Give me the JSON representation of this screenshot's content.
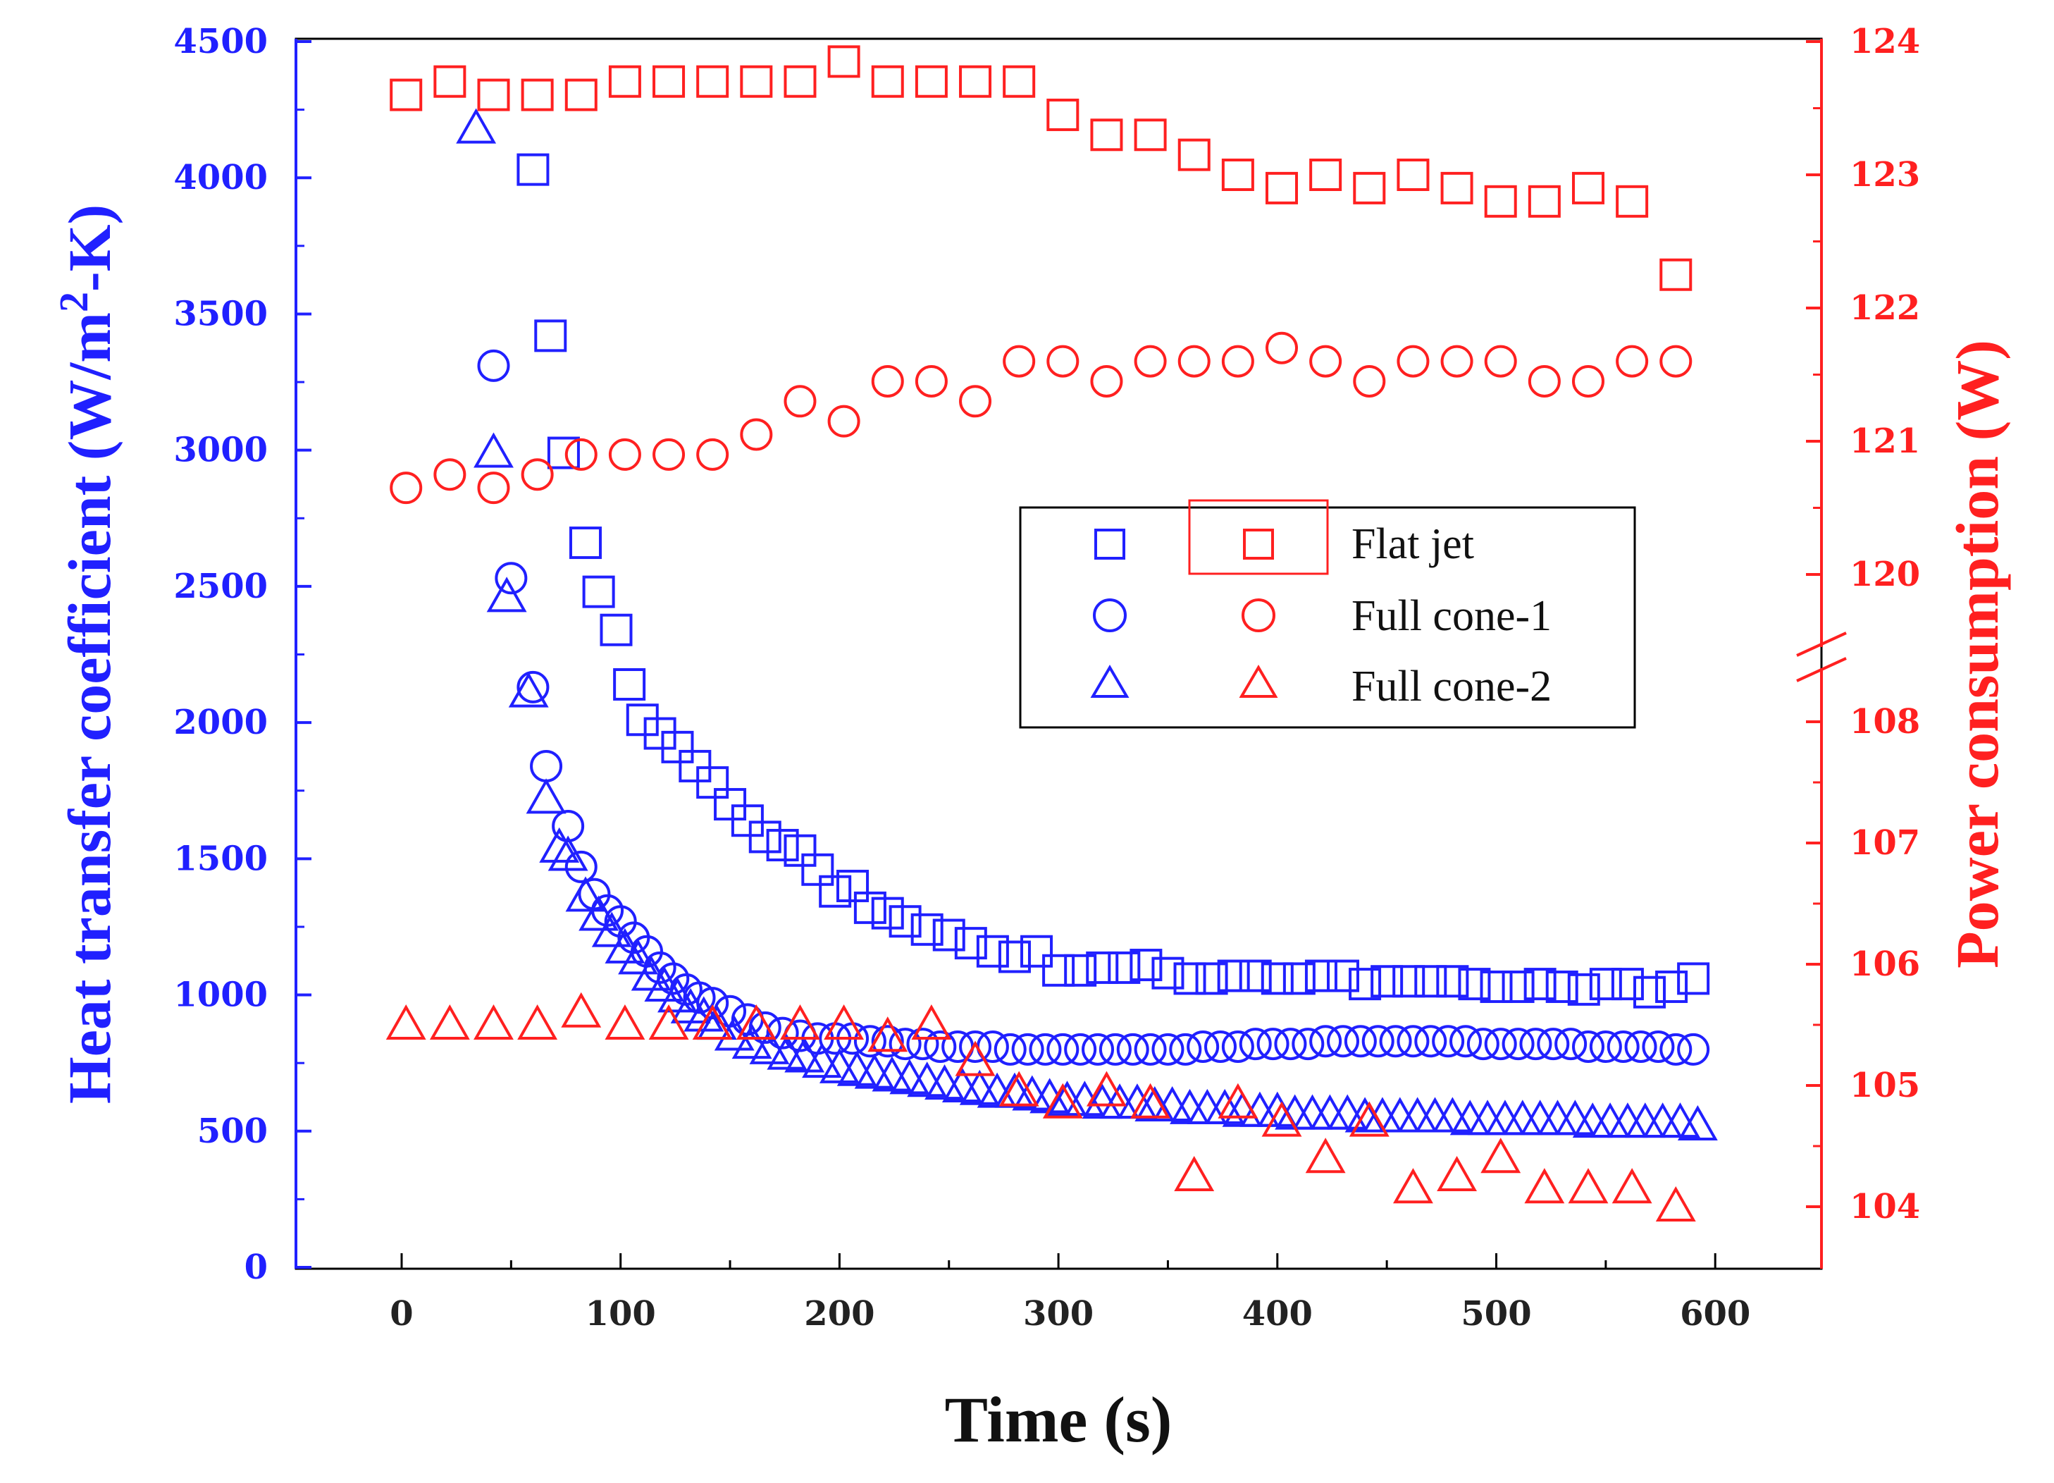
{
  "chart_data": {
    "type": "scatter",
    "title": "",
    "xlabel": "Time (s)",
    "ylabel_left": {
      "prefix": "Heat transfer coefficient (W/m",
      "sup": "2",
      "suffix": "-K)"
    },
    "ylabel_right": "Power consumption (W)",
    "xlim": [
      -50,
      650
    ],
    "x_ticks": [
      0,
      100,
      200,
      300,
      400,
      500,
      600
    ],
    "ylim_left": [
      0,
      4500
    ],
    "y_ticks_left": [
      0,
      500,
      1000,
      1500,
      2000,
      2500,
      3000,
      3500,
      4000,
      4500
    ],
    "right_axis": {
      "note": "broken axis between 108 W and 120 W",
      "upper_range": [
        120,
        124
      ],
      "lower_range": [
        104,
        108
      ],
      "ticks": [
        104,
        105,
        106,
        107,
        108,
        120,
        121,
        122,
        123,
        124
      ]
    },
    "legend": {
      "position": "center-right",
      "entries": [
        {
          "label": "Flat jet",
          "marker": "square"
        },
        {
          "label": "Full cone-1",
          "marker": "circle"
        },
        {
          "label": "Full cone-2",
          "marker": "triangle"
        }
      ]
    },
    "colors": {
      "htc": "#2020ff",
      "power": "#ff2020"
    },
    "series": [
      {
        "name": "Flat jet",
        "axis": "left",
        "color": "#2020ff",
        "marker": "square",
        "x": [
          60,
          68,
          74,
          84,
          90,
          98,
          104,
          110,
          118,
          126,
          134,
          142,
          150,
          158,
          166,
          174,
          182,
          190,
          198,
          206,
          214,
          222,
          230,
          240,
          250,
          260,
          270,
          280,
          290,
          300,
          310,
          320,
          330,
          340,
          350,
          360,
          370,
          380,
          390,
          400,
          410,
          420,
          430,
          440,
          450,
          460,
          470,
          480,
          490,
          500,
          510,
          520,
          530,
          540,
          550,
          560,
          570,
          580,
          590
        ],
        "y": [
          4030,
          3420,
          2990,
          2660,
          2480,
          2340,
          2140,
          2010,
          1960,
          1910,
          1840,
          1780,
          1700,
          1640,
          1580,
          1550,
          1530,
          1460,
          1380,
          1400,
          1320,
          1300,
          1270,
          1240,
          1220,
          1190,
          1160,
          1140,
          1160,
          1090,
          1090,
          1100,
          1100,
          1110,
          1080,
          1060,
          1060,
          1070,
          1070,
          1060,
          1060,
          1070,
          1070,
          1040,
          1050,
          1050,
          1050,
          1050,
          1040,
          1030,
          1030,
          1040,
          1030,
          1020,
          1040,
          1040,
          1010,
          1030,
          1060
        ]
      },
      {
        "name": "Full cone-1",
        "axis": "left",
        "color": "#2020ff",
        "marker": "circle",
        "x": [
          42,
          50,
          60,
          66,
          76,
          82,
          88,
          94,
          100,
          106,
          112,
          118,
          124,
          130,
          136,
          142,
          150,
          158,
          166,
          174,
          182,
          190,
          198,
          206,
          214,
          222,
          230,
          238,
          246,
          254,
          262,
          270,
          278,
          286,
          294,
          302,
          310,
          318,
          326,
          334,
          342,
          350,
          358,
          366,
          374,
          382,
          390,
          398,
          406,
          414,
          422,
          430,
          438,
          446,
          454,
          462,
          470,
          478,
          486,
          494,
          502,
          510,
          518,
          526,
          534,
          542,
          550,
          558,
          566,
          574,
          582,
          590
        ],
        "y": [
          3310,
          2530,
          2130,
          1840,
          1620,
          1470,
          1370,
          1310,
          1270,
          1210,
          1160,
          1100,
          1060,
          1020,
          990,
          970,
          940,
          910,
          880,
          860,
          850,
          840,
          840,
          840,
          830,
          830,
          820,
          820,
          810,
          810,
          810,
          810,
          800,
          800,
          800,
          800,
          800,
          800,
          800,
          800,
          800,
          800,
          800,
          810,
          810,
          810,
          820,
          820,
          820,
          820,
          830,
          830,
          830,
          830,
          830,
          830,
          830,
          830,
          830,
          820,
          820,
          820,
          820,
          820,
          820,
          810,
          810,
          810,
          810,
          810,
          800,
          800
        ]
      },
      {
        "name": "Full cone-2",
        "axis": "left",
        "color": "#2020ff",
        "marker": "triangle",
        "x": [
          34,
          42,
          48,
          58,
          66,
          72,
          76,
          84,
          90,
          96,
          102,
          108,
          114,
          120,
          126,
          132,
          138,
          144,
          152,
          160,
          168,
          176,
          184,
          192,
          200,
          208,
          216,
          224,
          232,
          240,
          248,
          256,
          264,
          272,
          280,
          288,
          296,
          304,
          312,
          320,
          328,
          336,
          344,
          352,
          360,
          368,
          376,
          384,
          392,
          400,
          408,
          416,
          424,
          432,
          440,
          448,
          456,
          464,
          472,
          480,
          488,
          496,
          504,
          512,
          520,
          528,
          536,
          544,
          552,
          560,
          568,
          576,
          584,
          592
        ],
        "y": [
          4180,
          2990,
          2460,
          2110,
          1720,
          1540,
          1510,
          1360,
          1290,
          1230,
          1170,
          1130,
          1070,
          1030,
          990,
          950,
          920,
          890,
          850,
          820,
          800,
          780,
          770,
          750,
          730,
          720,
          710,
          700,
          690,
          680,
          670,
          660,
          650,
          640,
          640,
          630,
          620,
          610,
          610,
          600,
          600,
          600,
          590,
          590,
          580,
          580,
          580,
          570,
          570,
          570,
          560,
          560,
          560,
          560,
          550,
          550,
          550,
          550,
          550,
          550,
          540,
          540,
          540,
          540,
          540,
          540,
          540,
          530,
          530,
          530,
          530,
          530,
          530,
          520
        ]
      },
      {
        "name": "Flat jet (power)",
        "axis": "right",
        "color": "#ff2020",
        "marker": "square",
        "x": [
          2,
          22,
          42,
          62,
          82,
          102,
          122,
          142,
          162,
          182,
          202,
          222,
          242,
          262,
          282,
          302,
          322,
          342,
          362,
          382,
          402,
          422,
          442,
          462,
          482,
          502,
          522,
          542,
          562,
          582
        ],
        "y": [
          123.6,
          123.7,
          123.6,
          123.6,
          123.6,
          123.7,
          123.7,
          123.7,
          123.7,
          123.7,
          123.85,
          123.7,
          123.7,
          123.7,
          123.7,
          123.45,
          123.3,
          123.3,
          123.15,
          123.0,
          122.9,
          123.0,
          122.9,
          123.0,
          122.9,
          122.8,
          122.8,
          122.9,
          122.8,
          122.25
        ]
      },
      {
        "name": "Full cone-1 (power)",
        "axis": "right",
        "color": "#ff2020",
        "marker": "circle",
        "x": [
          2,
          22,
          42,
          62,
          82,
          102,
          122,
          142,
          162,
          182,
          202,
          222,
          242,
          262,
          282,
          302,
          322,
          342,
          362,
          382,
          402,
          422,
          442,
          462,
          482,
          502,
          522,
          542,
          562,
          582
        ],
        "y": [
          120.65,
          120.75,
          120.65,
          120.75,
          120.9,
          120.9,
          120.9,
          120.9,
          121.05,
          121.3,
          121.15,
          121.45,
          121.45,
          121.3,
          121.6,
          121.6,
          121.45,
          121.6,
          121.6,
          121.6,
          121.7,
          121.6,
          121.45,
          121.6,
          121.6,
          121.6,
          121.45,
          121.45,
          121.6,
          121.6
        ]
      },
      {
        "name": "Full cone-2 (power)",
        "axis": "right",
        "color": "#ff2020",
        "marker": "triangle",
        "x": [
          2,
          22,
          42,
          62,
          82,
          102,
          122,
          142,
          162,
          182,
          202,
          222,
          242,
          262,
          282,
          302,
          322,
          342,
          362,
          382,
          402,
          422,
          442,
          462,
          482,
          502,
          522,
          542,
          562,
          582
        ],
        "y": [
          105.5,
          105.5,
          105.5,
          105.5,
          105.6,
          105.5,
          105.5,
          105.5,
          105.5,
          105.5,
          105.5,
          105.4,
          105.5,
          105.2,
          104.95,
          104.85,
          104.95,
          104.85,
          104.25,
          104.85,
          104.7,
          104.4,
          104.7,
          104.15,
          104.25,
          104.4,
          104.15,
          104.15,
          104.15,
          104.0
        ]
      }
    ]
  }
}
